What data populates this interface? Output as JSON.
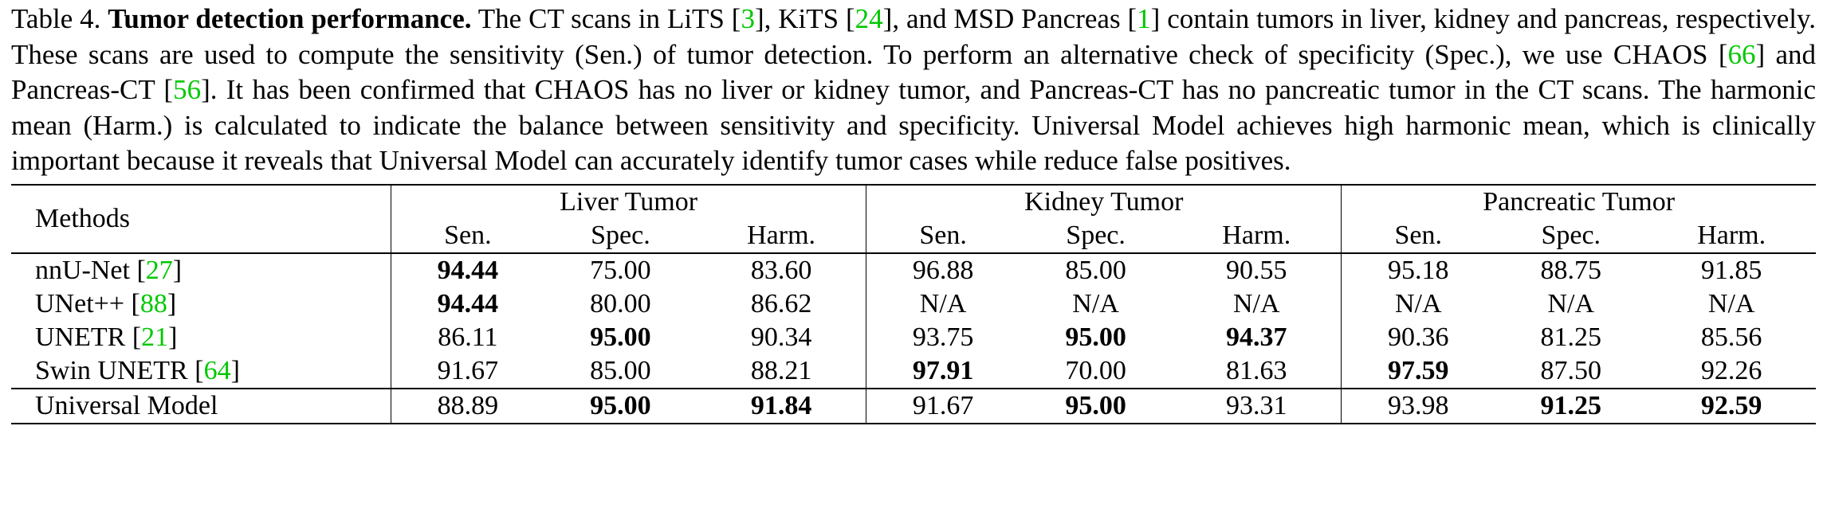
{
  "caption": {
    "label": "Table 4.",
    "title": "Tumor detection performance.",
    "text_1": "The CT scans in LiTS [",
    "cite_lits": "3",
    "text_2": "], KiTS [",
    "cite_kits": "24",
    "text_3": "], and MSD Pancreas [",
    "cite_msd": "1",
    "text_4": "] contain tumors in liver, kidney and pancreas, respectively. These scans are used to compute the sensitivity (Sen.) of tumor detection. To perform an alternative check of specificity (Spec.), we use CHAOS [",
    "cite_chaos": "66",
    "text_5": "] and Pancreas-CT [",
    "cite_pancct": "56",
    "text_6": "]. It has been confirmed that CHAOS has no liver or kidney tumor, and Pancreas-CT has no pancreatic tumor in the CT scans. The harmonic mean (Harm.) is calculated to indicate the balance between sensitivity and specificity. Universal Model achieves high harmonic mean, which is clinically important because it reveals that Universal Model can accurately identify tumor cases while reduce false positives."
  },
  "table": {
    "methods_header": "Methods",
    "groups": [
      "Liver Tumor",
      "Kidney Tumor",
      "Pancreatic Tumor"
    ],
    "subheaders": [
      "Sen.",
      "Spec.",
      "Harm.",
      "Sen.",
      "Spec.",
      "Harm.",
      "Sen.",
      "Spec.",
      "Harm."
    ],
    "rows": [
      {
        "method": "nnU-Net",
        "cite": "27",
        "values": [
          "94.44",
          "75.00",
          "83.60",
          "96.88",
          "85.00",
          "90.55",
          "95.18",
          "88.75",
          "91.85"
        ],
        "bold": [
          0
        ]
      },
      {
        "method": "UNet++",
        "cite": "88",
        "values": [
          "94.44",
          "80.00",
          "86.62",
          "N/A",
          "N/A",
          "N/A",
          "N/A",
          "N/A",
          "N/A"
        ],
        "bold": [
          0
        ]
      },
      {
        "method": "UNETR",
        "cite": "21",
        "values": [
          "86.11",
          "95.00",
          "90.34",
          "93.75",
          "95.00",
          "94.37",
          "90.36",
          "81.25",
          "85.56"
        ],
        "bold": [
          1,
          4,
          5
        ]
      },
      {
        "method": "Swin UNETR",
        "cite": "64",
        "values": [
          "91.67",
          "85.00",
          "88.21",
          "97.91",
          "70.00",
          "81.63",
          "97.59",
          "87.50",
          "92.26"
        ],
        "bold": [
          3,
          6
        ]
      },
      {
        "method": "Universal Model",
        "cite": "",
        "values": [
          "88.89",
          "95.00",
          "91.84",
          "91.67",
          "95.00",
          "93.31",
          "93.98",
          "91.25",
          "92.59"
        ],
        "bold": [
          1,
          2,
          4,
          7,
          8
        ]
      }
    ]
  }
}
